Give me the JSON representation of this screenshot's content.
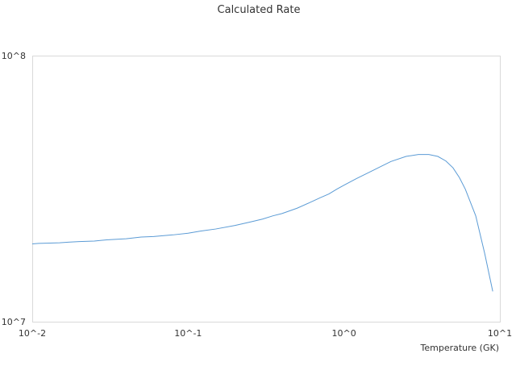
{
  "chart_data": {
    "type": "line",
    "title": "Calculated Rate",
    "xlabel": "Temperature (GK)",
    "ylabel": "",
    "x_scale": "log",
    "y_scale": "log",
    "xlim": [
      0.01,
      10
    ],
    "ylim": [
      10000000,
      100000000
    ],
    "x_ticks": [
      {
        "value": 0.01,
        "label": "10^-2"
      },
      {
        "value": 0.1,
        "label": "10^-1"
      },
      {
        "value": 1,
        "label": "10^0"
      },
      {
        "value": 10,
        "label": "10^1"
      }
    ],
    "y_ticks": [
      {
        "value": 10000000,
        "label": "10^7"
      },
      {
        "value": 100000000,
        "label": "10^8"
      }
    ],
    "grid": false,
    "legend": "none",
    "series": [
      {
        "color": "#5b9bd5",
        "x": [
          0.01,
          0.011,
          0.013,
          0.015,
          0.017,
          0.02,
          0.025,
          0.03,
          0.04,
          0.05,
          0.06,
          0.08,
          0.1,
          0.12,
          0.15,
          0.2,
          0.25,
          0.3,
          0.35,
          0.4,
          0.5,
          0.6,
          0.7,
          0.8,
          0.9,
          1.0,
          1.2,
          1.5,
          1.8,
          2.0,
          2.5,
          3.0,
          3.5,
          4.0,
          4.5,
          5.0,
          5.5,
          6.0,
          7.0,
          8.0,
          9.0
        ],
        "y": [
          19600000,
          19700000,
          19750000,
          19800000,
          19900000,
          20000000,
          20100000,
          20300000,
          20500000,
          20800000,
          20900000,
          21200000,
          21500000,
          21900000,
          22300000,
          23000000,
          23700000,
          24300000,
          25000000,
          25500000,
          26700000,
          28000000,
          29200000,
          30200000,
          31500000,
          32600000,
          34500000,
          36800000,
          38800000,
          40000000,
          41800000,
          42500000,
          42500000,
          41800000,
          40200000,
          37900000,
          34800000,
          31500000,
          25000000,
          18000000,
          13000000
        ]
      }
    ]
  }
}
